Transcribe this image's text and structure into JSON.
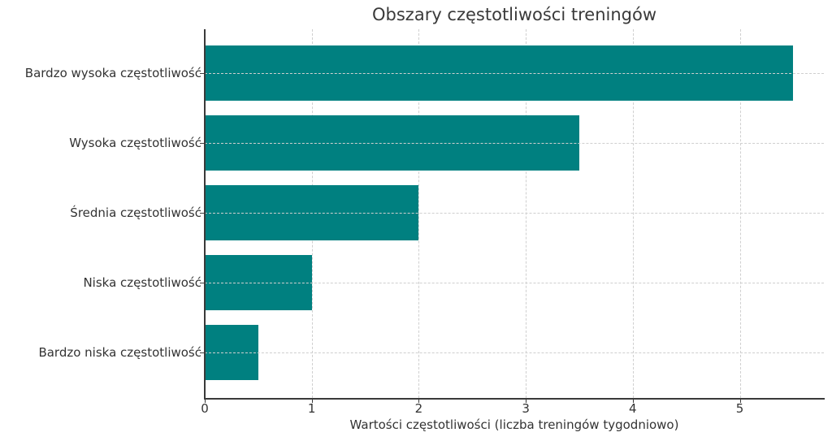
{
  "chart_data": {
    "type": "bar",
    "orientation": "horizontal",
    "title": "Obszary częstotliwości treningów",
    "xlabel": "Wartości częstotliwości (liczba treningów tygodniowo)",
    "ylabel": "",
    "categories": [
      "Bardzo wysoka częstotliwość",
      "Wysoka częstotliwość",
      "Średnia częstotliwość",
      "Niska częstotliwość",
      "Bardzo niska częstotliwość"
    ],
    "values": [
      5.5,
      3.5,
      2,
      1,
      0.5
    ],
    "xlim": [
      0,
      5.78
    ],
    "xticks": [
      "0",
      "1",
      "2",
      "3",
      "4",
      "5"
    ],
    "grid": true,
    "bar_color": "#008080",
    "legend": null
  }
}
